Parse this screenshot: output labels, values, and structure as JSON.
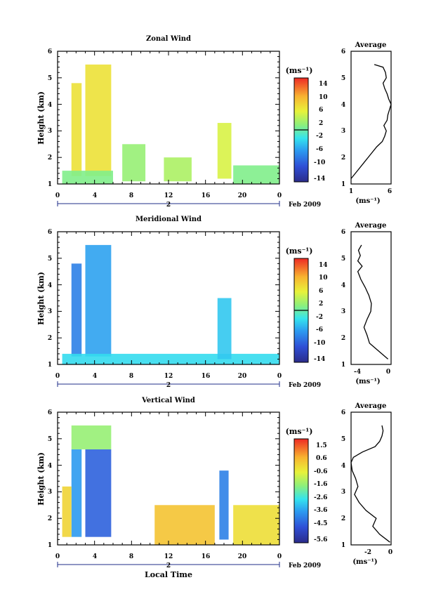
{
  "chart_data": [
    {
      "type": "heatmap",
      "title": "Zonal Wind",
      "ylabel": "Height (km)",
      "xlabel": "",
      "x_ticks": [
        "0",
        "4",
        "8",
        "12",
        "16",
        "20",
        "0"
      ],
      "y_ticks": [
        "1",
        "2",
        "3",
        "4",
        "5",
        "6"
      ],
      "xlim": [
        0,
        24
      ],
      "ylim": [
        1,
        6
      ],
      "day_label": "2",
      "date_label": "Feb 2009",
      "colorbar": {
        "label": "(ms⁻¹)",
        "ticks": [
          "14",
          "10",
          "6",
          "2",
          "-2",
          "-6",
          "-10",
          "-14"
        ],
        "range": [
          -16,
          16
        ]
      },
      "regions": [
        {
          "x": [
            1.5,
            2.6
          ],
          "y": [
            1.3,
            4.8
          ],
          "value": 7
        },
        {
          "x": [
            3.0,
            5.8
          ],
          "y": [
            1.3,
            5.5
          ],
          "value": 7
        },
        {
          "x": [
            0.5,
            6.0
          ],
          "y": [
            1.0,
            1.5
          ],
          "value": 1
        },
        {
          "x": [
            7.0,
            9.5
          ],
          "y": [
            1.1,
            2.5
          ],
          "value": 2
        },
        {
          "x": [
            11.5,
            14.5
          ],
          "y": [
            1.1,
            2.0
          ],
          "value": 3
        },
        {
          "x": [
            17.3,
            18.8
          ],
          "y": [
            1.2,
            3.3
          ],
          "value": 5
        },
        {
          "x": [
            19.0,
            24.0
          ],
          "y": [
            1.0,
            1.7
          ],
          "value": 1
        }
      ],
      "average": {
        "title": "Average",
        "xlabel": "(ms⁻¹)",
        "x_ticks": [
          "1",
          "6"
        ],
        "y_ticks": [
          "1",
          "2",
          "3",
          "4",
          "5",
          "6"
        ],
        "xlim": [
          1,
          6
        ],
        "profile": {
          "height": [
            1.2,
            1.5,
            1.8,
            2.1,
            2.4,
            2.6,
            2.8,
            3.0,
            3.2,
            3.4,
            3.6,
            3.8,
            4.0,
            4.2,
            4.4,
            4.6,
            4.8,
            5.0,
            5.2,
            5.4,
            5.5
          ],
          "value": [
            1.0,
            1.8,
            2.6,
            3.4,
            4.2,
            4.9,
            5.2,
            5.4,
            5.1,
            5.5,
            5.6,
            5.8,
            6.0,
            5.7,
            5.5,
            5.2,
            5.0,
            5.4,
            5.3,
            5.0,
            3.9
          ]
        }
      }
    },
    {
      "type": "heatmap",
      "title": "Meridional Wind",
      "ylabel": "Height (km)",
      "xlabel": "",
      "x_ticks": [
        "0",
        "4",
        "8",
        "12",
        "16",
        "20",
        "0"
      ],
      "y_ticks": [
        "1",
        "2",
        "3",
        "4",
        "5",
        "6"
      ],
      "xlim": [
        0,
        24
      ],
      "ylim": [
        1,
        6
      ],
      "day_label": "2",
      "date_label": "Feb 2009",
      "colorbar": {
        "label": "(ms⁻¹)",
        "ticks": [
          "14",
          "10",
          "6",
          "2",
          "-2",
          "-6",
          "-10",
          "-14"
        ],
        "range": [
          -16,
          16
        ]
      },
      "regions": [
        {
          "x": [
            1.5,
            2.6
          ],
          "y": [
            1.3,
            4.8
          ],
          "value": -8
        },
        {
          "x": [
            3.0,
            5.8
          ],
          "y": [
            1.3,
            5.5
          ],
          "value": -6
        },
        {
          "x": [
            0.5,
            24.0
          ],
          "y": [
            1.0,
            1.4
          ],
          "value": -3
        },
        {
          "x": [
            17.3,
            18.8
          ],
          "y": [
            1.2,
            3.5
          ],
          "value": -4
        }
      ],
      "average": {
        "title": "Average",
        "xlabel": "(ms⁻¹)",
        "x_ticks": [
          "-4",
          "0"
        ],
        "y_ticks": [
          "1",
          "2",
          "3",
          "4",
          "5",
          "6"
        ],
        "xlim": [
          -6,
          0.5
        ],
        "profile": {
          "height": [
            1.2,
            1.5,
            1.8,
            2.1,
            2.4,
            2.7,
            3.0,
            3.3,
            3.6,
            3.9,
            4.2,
            4.5,
            4.7,
            4.9,
            5.1,
            5.3,
            5.5
          ],
          "value": [
            0.0,
            -1.5,
            -3.0,
            -3.4,
            -3.9,
            -3.4,
            -2.8,
            -2.7,
            -3.1,
            -3.7,
            -4.4,
            -4.9,
            -4.2,
            -4.9,
            -4.5,
            -4.8,
            -4.3
          ]
        }
      }
    },
    {
      "type": "heatmap",
      "title": "Vertical Wind",
      "ylabel": "Height (km)",
      "xlabel": "Local Time",
      "x_ticks": [
        "0",
        "4",
        "8",
        "12",
        "16",
        "20",
        "0"
      ],
      "y_ticks": [
        "1",
        "2",
        "3",
        "4",
        "5",
        "6"
      ],
      "xlim": [
        0,
        24
      ],
      "ylim": [
        1,
        6
      ],
      "day_label": "2",
      "date_label": "Feb 2009",
      "colorbar": {
        "label": "(ms⁻¹)",
        "ticks": [
          "1.5",
          "0.6",
          "-0.6",
          "-1.6",
          "-2.6",
          "-3.6",
          "-4.5",
          "-5.6"
        ],
        "range": [
          -6,
          2
        ]
      },
      "regions": [
        {
          "x": [
            1.5,
            2.6
          ],
          "y": [
            1.3,
            4.6
          ],
          "value": -3.6
        },
        {
          "x": [
            3.0,
            5.8
          ],
          "y": [
            1.3,
            4.6
          ],
          "value": -4.5
        },
        {
          "x": [
            1.5,
            5.8
          ],
          "y": [
            4.6,
            5.5
          ],
          "value": -1.5
        },
        {
          "x": [
            10.5,
            17.0
          ],
          "y": [
            1.0,
            2.5
          ],
          "value": 0.3
        },
        {
          "x": [
            17.5,
            18.5
          ],
          "y": [
            1.2,
            3.8
          ],
          "value": -4.0
        },
        {
          "x": [
            0.5,
            1.5
          ],
          "y": [
            1.3,
            3.2
          ],
          "value": 0.0
        },
        {
          "x": [
            19.0,
            24.0
          ],
          "y": [
            1.0,
            2.5
          ],
          "value": -0.2
        }
      ],
      "average": {
        "title": "Average",
        "xlabel": "(ms⁻¹)",
        "x_ticks": [
          "-2",
          "0"
        ],
        "y_ticks": [
          "1",
          "2",
          "3",
          "4",
          "5",
          "6"
        ],
        "xlim": [
          -3.5,
          0
        ],
        "profile": {
          "height": [
            1.1,
            1.4,
            1.7,
            2.0,
            2.3,
            2.6,
            2.9,
            3.2,
            3.5,
            3.8,
            4.1,
            4.3,
            4.5,
            4.7,
            4.9,
            5.1,
            5.3,
            5.5
          ],
          "value": [
            -0.1,
            -1.0,
            -1.6,
            -1.3,
            -2.2,
            -2.8,
            -3.2,
            -2.9,
            -3.1,
            -3.4,
            -3.5,
            -3.3,
            -2.5,
            -1.4,
            -1.0,
            -0.8,
            -0.7,
            -0.8
          ]
        }
      }
    }
  ]
}
